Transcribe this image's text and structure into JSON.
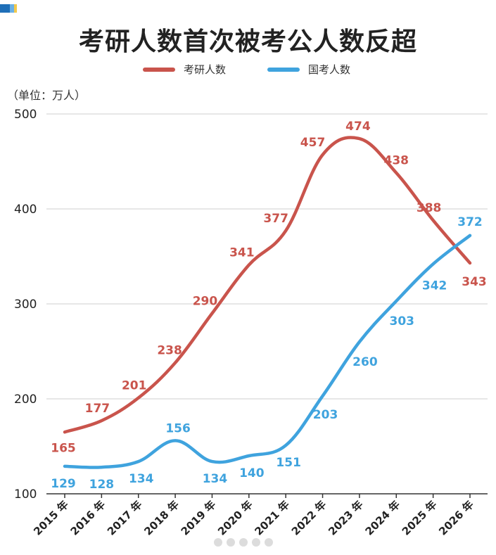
{
  "title": "考研人数首次被考公人数反超",
  "unit_label": "（单位：万人）",
  "colors": {
    "kaoyan": "#c9544c",
    "guokao": "#3fa3de",
    "grid": "#cfcfcf"
  },
  "chart_data": {
    "type": "line",
    "title": "考研人数首次被考公人数反超",
    "ylabel": "（单位：万人）",
    "xlabel": "",
    "categories": [
      "2015 年",
      "2016 年",
      "2017 年",
      "2018 年",
      "2019 年",
      "2020 年",
      "2021 年",
      "2022 年",
      "2023 年",
      "2024 年",
      "2025 年",
      "2026 年"
    ],
    "ylim": [
      100,
      500
    ],
    "yticks": [
      100,
      200,
      300,
      400,
      500
    ],
    "grid": true,
    "legend_position": "top-center",
    "series": [
      {
        "name": "考研人数",
        "color": "#c9544c",
        "values": [
          165,
          177,
          201,
          238,
          290,
          341,
          377,
          457,
          474,
          438,
          388,
          343
        ]
      },
      {
        "name": "国考人数",
        "color": "#3fa3de",
        "values": [
          129,
          128,
          134,
          156,
          134,
          140,
          151,
          203,
          260,
          303,
          342,
          372
        ]
      }
    ]
  }
}
